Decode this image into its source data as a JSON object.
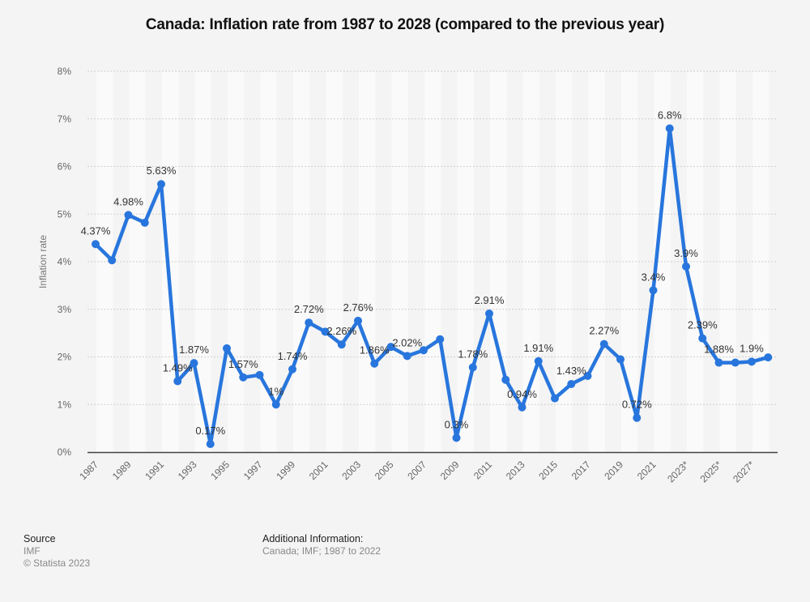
{
  "chart_data": {
    "type": "line",
    "title": "Canada: Inflation rate from 1987 to 2028 (compared to the previous year)",
    "xlabel": "",
    "ylabel": "Inflation rate",
    "ylim": [
      0,
      8
    ],
    "yticks": [
      "0%",
      "1%",
      "2%",
      "3%",
      "4%",
      "5%",
      "6%",
      "7%",
      "8%"
    ],
    "grid": true,
    "legend": "none",
    "x": [
      1987,
      1988,
      1989,
      1990,
      1991,
      1992,
      1993,
      1994,
      1995,
      1996,
      1997,
      1998,
      1999,
      2000,
      2001,
      2002,
      2003,
      2004,
      2005,
      2006,
      2007,
      2008,
      2009,
      2010,
      2011,
      2012,
      2013,
      2014,
      2015,
      2016,
      2017,
      2018,
      2019,
      2020,
      2021,
      2022,
      2023,
      2024,
      2025,
      2026,
      2027,
      2028
    ],
    "xtick_labels": [
      "1987",
      "1989",
      "1991",
      "1993",
      "1995",
      "1997",
      "1999",
      "2001",
      "2003",
      "2005",
      "2007",
      "2009",
      "2011",
      "2013",
      "2015",
      "2017",
      "2019",
      "2021",
      "2023*",
      "2025*",
      "2027*"
    ],
    "series": [
      {
        "name": "Inflation rate",
        "color": "#2876dd",
        "values": [
          4.37,
          4.03,
          4.98,
          4.82,
          5.63,
          1.49,
          1.87,
          0.17,
          2.18,
          1.57,
          1.62,
          1.0,
          1.74,
          2.72,
          2.53,
          2.26,
          2.76,
          1.86,
          2.21,
          2.02,
          2.14,
          2.37,
          0.3,
          1.78,
          2.91,
          1.52,
          0.94,
          1.91,
          1.13,
          1.43,
          1.6,
          2.27,
          1.95,
          0.72,
          3.4,
          6.8,
          3.9,
          2.39,
          1.88,
          1.88,
          1.9,
          1.99
        ]
      }
    ],
    "data_labels": [
      {
        "year": 1987,
        "text": "4.37%"
      },
      {
        "year": 1989,
        "text": "4.98%"
      },
      {
        "year": 1991,
        "text": "5.63%"
      },
      {
        "year": 1992,
        "text": "1.49%"
      },
      {
        "year": 1993,
        "text": "1.87%"
      },
      {
        "year": 1994,
        "text": "0.17%"
      },
      {
        "year": 1996,
        "text": "1.57%"
      },
      {
        "year": 1998,
        "text": "1%"
      },
      {
        "year": 1999,
        "text": "1.74%"
      },
      {
        "year": 2000,
        "text": "2.72%"
      },
      {
        "year": 2002,
        "text": "2.26%"
      },
      {
        "year": 2003,
        "text": "2.76%"
      },
      {
        "year": 2004,
        "text": "1.86%"
      },
      {
        "year": 2006,
        "text": "2.02%"
      },
      {
        "year": 2009,
        "text": "0.3%"
      },
      {
        "year": 2010,
        "text": "1.78%"
      },
      {
        "year": 2011,
        "text": "2.91%"
      },
      {
        "year": 2013,
        "text": "0.94%"
      },
      {
        "year": 2014,
        "text": "1.91%"
      },
      {
        "year": 2016,
        "text": "1.43%"
      },
      {
        "year": 2018,
        "text": "2.27%"
      },
      {
        "year": 2020,
        "text": "0.72%"
      },
      {
        "year": 2021,
        "text": "3.4%"
      },
      {
        "year": 2022,
        "text": "6.8%"
      },
      {
        "year": 2023,
        "text": "3.9%"
      },
      {
        "year": 2024,
        "text": "2.39%"
      },
      {
        "year": 2025,
        "text": "1.88%"
      },
      {
        "year": 2027,
        "text": "1.9%"
      }
    ]
  },
  "footer": {
    "source_heading": "Source",
    "source_name": "IMF",
    "copyright": "© Statista 2023",
    "additional_heading": "Additional Information:",
    "additional_text": "Canada; IMF; 1987 to 2022"
  }
}
